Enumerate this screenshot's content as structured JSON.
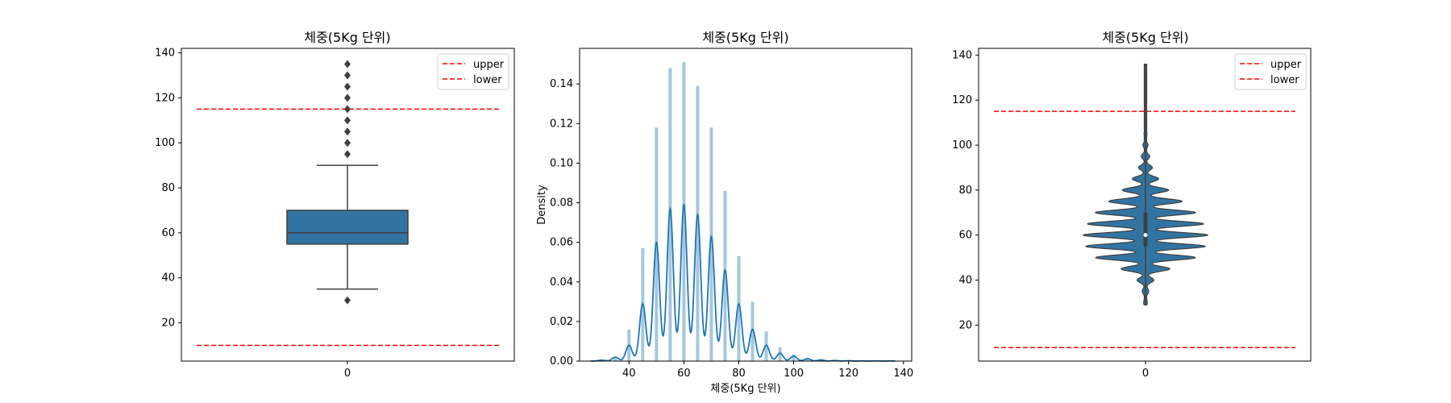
{
  "chart_data": [
    {
      "type": "box",
      "title": "체중(5Kg 단위)",
      "xlabel": "",
      "ylabel": "",
      "x_ticks": [
        "0"
      ],
      "ylim": [
        3,
        142
      ],
      "y_ticks": [
        20,
        40,
        60,
        80,
        100,
        120,
        140
      ],
      "box": {
        "q1": 55,
        "median": 60,
        "q3": 70,
        "whisker_low": 35,
        "whisker_high": 90
      },
      "outliers": [
        30,
        95,
        100,
        105,
        110,
        115,
        120,
        125,
        130,
        135
      ],
      "reference_lines": [
        {
          "name": "upper",
          "value": 115,
          "color": "#ff0000",
          "style": "dashed"
        },
        {
          "name": "lower",
          "value": 10,
          "color": "#ff0000",
          "style": "dashed"
        }
      ],
      "legend": {
        "placement": "top-right",
        "entries": [
          "upper",
          "lower"
        ]
      },
      "colors": {
        "box": "#3274a1",
        "outline": "#3f3f3f"
      }
    },
    {
      "type": "histogram+kde",
      "title": "체중(5Kg 단위)",
      "xlabel": "체중(5Kg 단위)",
      "ylabel": "Density",
      "xlim": [
        22,
        143
      ],
      "ylim": [
        0,
        0.158
      ],
      "x_ticks": [
        40,
        60,
        80,
        100,
        120,
        140
      ],
      "y_ticks": [
        0.0,
        0.02,
        0.04,
        0.06,
        0.08,
        0.1,
        0.12,
        0.14
      ],
      "histogram": {
        "x": [
          30,
          35,
          40,
          45,
          50,
          55,
          60,
          65,
          70,
          75,
          80,
          85,
          90,
          95,
          100,
          105,
          110,
          115,
          120,
          125,
          130,
          135
        ],
        "density": [
          0.0005,
          0.002,
          0.016,
          0.057,
          0.118,
          0.148,
          0.151,
          0.139,
          0.118,
          0.086,
          0.053,
          0.03,
          0.015,
          0.007,
          0.0035,
          0.0015,
          0.0007,
          0.0003,
          0.0002,
          0.0001,
          0.0001,
          0.0001
        ]
      },
      "kde_peaks": {
        "x": [
          30,
          35,
          40,
          45,
          50,
          55,
          60,
          65,
          70,
          75,
          80,
          85,
          90,
          95,
          100,
          105,
          110,
          115,
          120,
          125,
          130,
          135
        ],
        "density": [
          0.0005,
          0.002,
          0.008,
          0.029,
          0.06,
          0.077,
          0.079,
          0.074,
          0.063,
          0.046,
          0.029,
          0.016,
          0.008,
          0.004,
          0.0025,
          0.0012,
          0.0006,
          0.0003,
          0.0002,
          0.0001,
          0.0001,
          0.0001
        ]
      },
      "colors": {
        "bars": "#a6c6df",
        "kde": "#1f77b4"
      }
    },
    {
      "type": "violin",
      "title": "체중(5Kg 단위)",
      "xlabel": "",
      "ylabel": "",
      "x_ticks": [
        "0"
      ],
      "ylim": [
        4,
        143
      ],
      "y_ticks": [
        20,
        40,
        60,
        80,
        100,
        120,
        140
      ],
      "range": [
        29,
        136
      ],
      "box": {
        "q1": 55,
        "median": 60,
        "q3": 70,
        "whisker_low": 35,
        "whisker_high": 90
      },
      "peaks": {
        "y": [
          30,
          35,
          40,
          45,
          50,
          55,
          60,
          65,
          70,
          75,
          80,
          85,
          90,
          95,
          100,
          105,
          110
        ],
        "relative_width": [
          0.02,
          0.04,
          0.12,
          0.38,
          0.8,
          0.96,
          1.0,
          0.93,
          0.8,
          0.58,
          0.36,
          0.2,
          0.1,
          0.06,
          0.035,
          0.02,
          0.012
        ]
      },
      "reference_lines": [
        {
          "name": "upper",
          "value": 115,
          "color": "#ff0000",
          "style": "dashed"
        },
        {
          "name": "lower",
          "value": 10,
          "color": "#ff0000",
          "style": "dashed"
        }
      ],
      "legend": {
        "placement": "top-right",
        "entries": [
          "upper",
          "lower"
        ]
      },
      "colors": {
        "violin": "#3274a1",
        "outline": "#3f3f3f"
      }
    }
  ]
}
